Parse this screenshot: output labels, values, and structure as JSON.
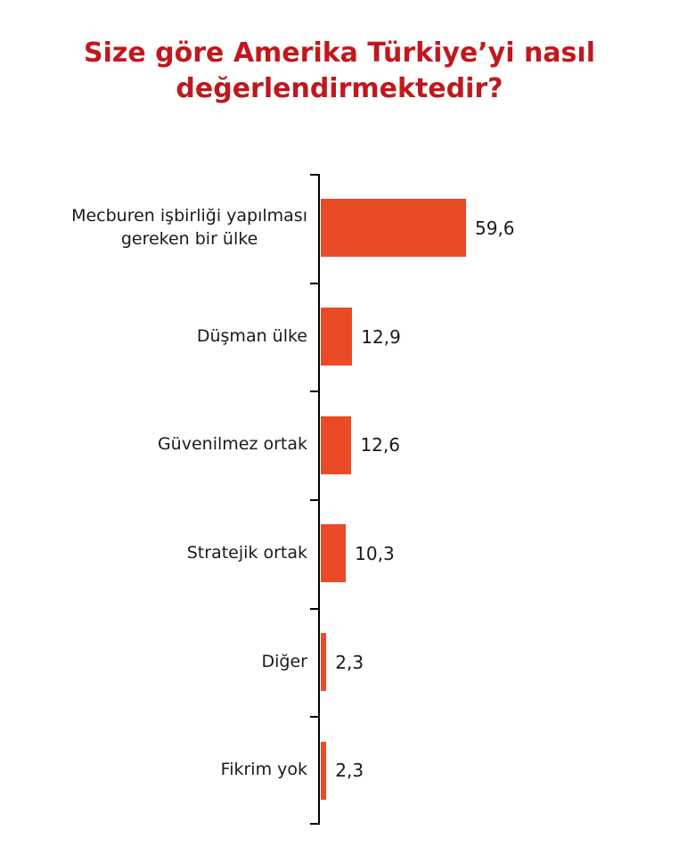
{
  "page": {
    "background": "#ffffff"
  },
  "title": {
    "full": "Size göre Amerika Türkiye’yi nasıl değerlendirmektedir?",
    "lines": [
      "Size göre Amerika Türkiye’yi nasıl",
      "değerlendirmektedir?"
    ]
  },
  "colors": {
    "bar": "#ea4a25",
    "title": "#c0181e",
    "label": "#1a1a1a",
    "axis": "#000000"
  },
  "chart_data": {
    "type": "bar",
    "orientation": "horizontal",
    "title": "Size göre Amerika Türkiye’yi nasıl değerlendirmektedir?",
    "categories": [
      "Mecburen işbirliği yapılması\ngereken bir ülke",
      "Düşman ülke",
      "Güvenilmez ortak",
      "Stratejik ortak",
      "Diğer",
      "Fikrim yok"
    ],
    "values": [
      59.6,
      12.9,
      12.6,
      10.3,
      2.3,
      2.3
    ],
    "value_labels": [
      "59,6",
      "12,9",
      "12,6",
      "10,3",
      "2,3",
      "2,3"
    ],
    "unit": "percent",
    "decimal_separator": ",",
    "xlim": [
      0,
      70
    ],
    "grid": false,
    "legend": false,
    "value_label_position": "right-of-bar",
    "category_label_position": "left-of-axis"
  }
}
